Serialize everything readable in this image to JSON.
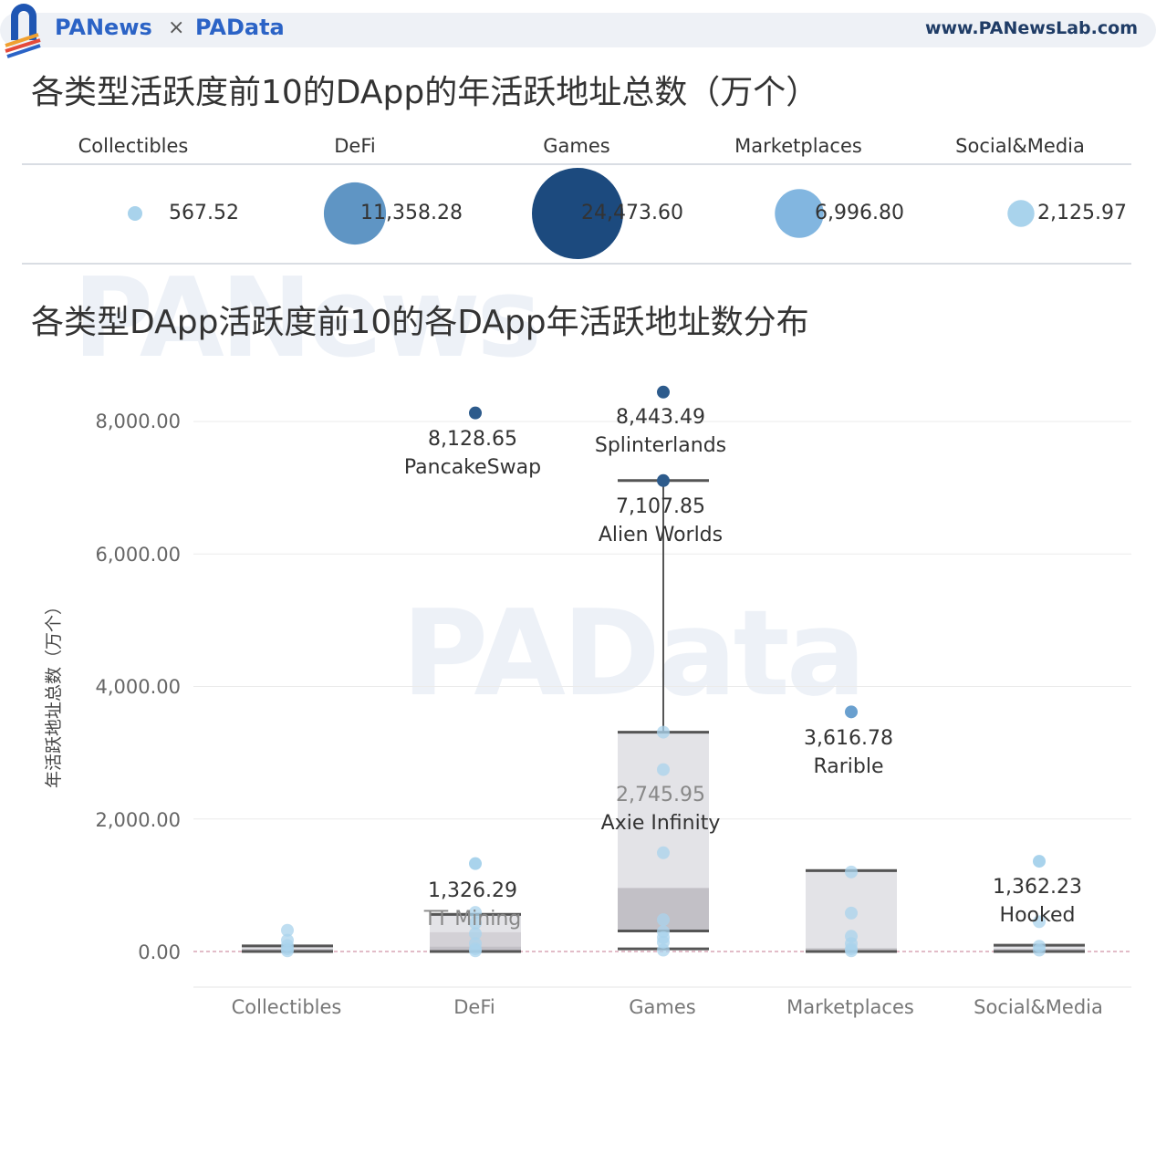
{
  "header": {
    "brand_left": "PANews",
    "brand_sep": "×",
    "brand_right": "PAData",
    "site_url": "www.PANewsLab.com"
  },
  "bubble_section": {
    "title": "各类型活跃度前10的DApp的年活跃地址总数（万个）",
    "categories": [
      "Collectibles",
      "DeFi",
      "Games",
      "Marketplaces",
      "Social&Media"
    ],
    "value_labels": [
      "567.52",
      "11,358.28",
      "24,473.60",
      "6,996.80",
      "2,125.97"
    ]
  },
  "box_section": {
    "title": "各类型DApp活跃度前10的各DApp年活跃地址数分布",
    "ylabel": "年活跃地址总数（万个）",
    "y_tick_labels": [
      "8,000.00",
      "6,000.00",
      "4,000.00",
      "2,000.00",
      "0.00"
    ],
    "x_categories": [
      "Collectibles",
      "DeFi",
      "Games",
      "Marketplaces",
      "Social&Media"
    ],
    "annotations": {
      "pancakeswap_value": "8,128.65",
      "pancakeswap_name": "PancakeSwap",
      "splinterlands_value": "8,443.49",
      "splinterlands_name": "Splinterlands",
      "alienworlds_value": "7,107.85",
      "alienworlds_name": "Alien Worlds",
      "axie_value": "2,745.95",
      "axie_name": "Axie Infinity",
      "rarible_value": "3,616.78",
      "rarible_name": "Rarible",
      "ttmining_value": "1,326.29",
      "ttmining_name": "TT Mining",
      "hooked_value": "1,362.23",
      "hooked_name": "Hooked"
    }
  },
  "chart_data": [
    {
      "type": "scatter",
      "title": "各类型活跃度前10的DApp的年活跃地址总数（万个）",
      "categories": [
        "Collectibles",
        "DeFi",
        "Games",
        "Marketplaces",
        "Social&Media"
      ],
      "values": [
        567.52,
        11358.28,
        24473.6,
        6996.8,
        2125.97
      ],
      "colors": [
        "#a9d3ec",
        "#5f95c4",
        "#1c4a7e",
        "#82b6e0",
        "#a9d3ec"
      ]
    },
    {
      "type": "box",
      "title": "各类型DApp活跃度前10的各DApp年活跃地址数分布",
      "ylabel": "年活跃地址总数（万个）",
      "ylim": [
        -500,
        8800
      ],
      "yticks": [
        0,
        2000,
        4000,
        6000,
        8000
      ],
      "categories": [
        "Collectibles",
        "DeFi",
        "Games",
        "Marketplaces",
        "Social&Media"
      ],
      "boxes": [
        {
          "category": "Collectibles",
          "q1": 5,
          "median": 40,
          "q3": 85,
          "whisker_low": 0,
          "whisker_high": 85
        },
        {
          "category": "DeFi",
          "q1": 20,
          "median": 75,
          "q3": 290,
          "upper_q": 560,
          "whisker_low": 0,
          "whisker_high": 560
        },
        {
          "category": "Games",
          "q1": 310,
          "median": 960,
          "q3": 3310,
          "whisker_low": 40,
          "whisker_high": 7107.85
        },
        {
          "category": "Marketplaces",
          "q1": 25,
          "median": 50,
          "q3": 135,
          "upper_q": 1220,
          "whisker_low": 0,
          "whisker_high": 1220
        },
        {
          "category": "Social&Media",
          "q1": 20,
          "median": 40,
          "q3": 95,
          "whisker_low": 0,
          "whisker_high": 95
        }
      ],
      "points": [
        {
          "category": "Collectibles",
          "values": [
            320,
            170,
            90,
            40,
            10
          ]
        },
        {
          "category": "DeFi",
          "values": [
            8128.65,
            1326.29,
            590,
            430,
            270,
            120,
            40,
            10
          ]
        },
        {
          "category": "Games",
          "values": [
            8443.49,
            7107.85,
            3310,
            2745.95,
            1490,
            480,
            300,
            210,
            140,
            20
          ]
        },
        {
          "category": "Marketplaces",
          "values": [
            3616.78,
            1200,
            580,
            230,
            120,
            40,
            10
          ]
        },
        {
          "category": "Social&Media",
          "values": [
            1362.23,
            450,
            80,
            20
          ]
        }
      ],
      "outlier_colors": {
        "high": "#2d5b8c",
        "mid": "#6aa0cf",
        "low": "#a9d3ec"
      }
    }
  ]
}
